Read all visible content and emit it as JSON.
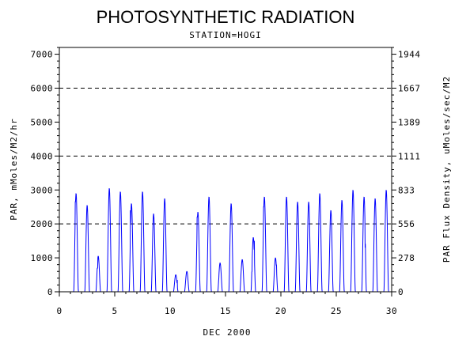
{
  "chart_data": {
    "type": "line",
    "title": "PHOTOSYNTHETIC RADIATION",
    "subtitle": "STATION=HOGI",
    "xlabel": "DEC 2000",
    "ylabel": "PAR, mMoles/M2/hr",
    "y2label": "PAR Flux Density, uMoles/sec/M2",
    "xlim": [
      0,
      30
    ],
    "ylim": [
      0,
      7200
    ],
    "x_ticks": [
      "0",
      "5",
      "10",
      "15",
      "20",
      "25",
      "30"
    ],
    "y_ticks": [
      "0",
      "1000",
      "2000",
      "3000",
      "4000",
      "5000",
      "6000",
      "7000"
    ],
    "y2_ticks": [
      "0",
      "278",
      "556",
      "833",
      "1111",
      "1389",
      "1667",
      "1944"
    ],
    "grid_lines_y": [
      2000,
      4000,
      6000
    ],
    "grid_style": "dashed",
    "line_color": "#0000ff",
    "daily_peaks": [
      {
        "day": 1.5,
        "value": 2900,
        "extra": [
          [
            1.45,
            2650
          ]
        ]
      },
      {
        "day": 2.5,
        "value": 2550
      },
      {
        "day": 3.5,
        "value": 1050,
        "extra": [
          [
            3.45,
            700
          ]
        ]
      },
      {
        "day": 4.5,
        "value": 3050
      },
      {
        "day": 5.5,
        "value": 2950
      },
      {
        "day": 6.5,
        "value": 2600,
        "extra": [
          [
            6.42,
            2400
          ]
        ]
      },
      {
        "day": 7.5,
        "value": 2950
      },
      {
        "day": 8.5,
        "value": 2300
      },
      {
        "day": 9.5,
        "value": 2750
      },
      {
        "day": 10.5,
        "value": 500,
        "extra": [
          [
            10.65,
            350
          ]
        ]
      },
      {
        "day": 11.5,
        "value": 600
      },
      {
        "day": 12.5,
        "value": 2350,
        "extra": [
          [
            12.45,
            2200
          ]
        ]
      },
      {
        "day": 13.5,
        "value": 2800
      },
      {
        "day": 14.5,
        "value": 850,
        "extra": [
          [
            14.4,
            400
          ]
        ]
      },
      {
        "day": 15.5,
        "value": 2600
      },
      {
        "day": 16.5,
        "value": 950,
        "extra": [
          [
            16.4,
            500
          ]
        ]
      },
      {
        "day": 17.5,
        "value": 1600,
        "extra": [
          [
            17.4,
            600
          ],
          [
            17.6,
            1500
          ]
        ]
      },
      {
        "day": 18.5,
        "value": 2800,
        "extra": [
          [
            18.45,
            2500
          ]
        ]
      },
      {
        "day": 19.5,
        "value": 1000,
        "extra": [
          [
            19.6,
            800
          ]
        ]
      },
      {
        "day": 20.5,
        "value": 2800
      },
      {
        "day": 21.5,
        "value": 2650
      },
      {
        "day": 22.5,
        "value": 2650
      },
      {
        "day": 23.5,
        "value": 2900
      },
      {
        "day": 24.5,
        "value": 2400
      },
      {
        "day": 25.5,
        "value": 2700
      },
      {
        "day": 26.5,
        "value": 3000
      },
      {
        "day": 27.5,
        "value": 2800,
        "extra": [
          [
            27.6,
            1300
          ]
        ]
      },
      {
        "day": 28.5,
        "value": 2750
      },
      {
        "day": 29.5,
        "value": 3000
      }
    ]
  }
}
